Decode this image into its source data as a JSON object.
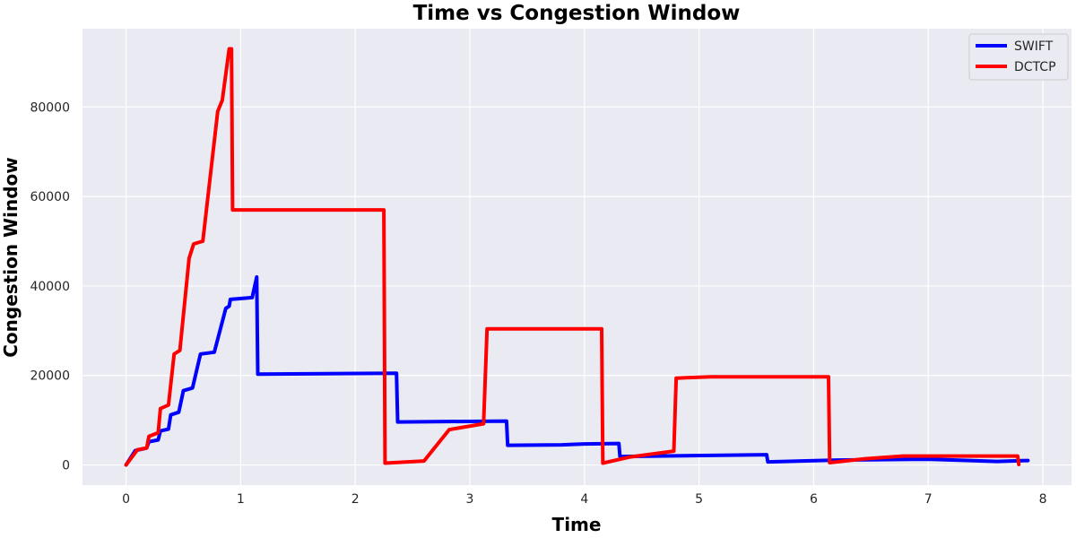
{
  "chart_data": {
    "type": "line",
    "title": "Time vs Congestion Window",
    "xlabel": "Time",
    "ylabel": "Congestion Window",
    "xlim": [
      -0.38,
      8.25
    ],
    "ylim": [
      -4500,
      97500
    ],
    "xticks": [
      0,
      1,
      2,
      3,
      4,
      5,
      6,
      7,
      8
    ],
    "yticks": [
      0,
      20000,
      40000,
      60000,
      80000
    ],
    "grid": true,
    "legend_position": "top-right",
    "series": [
      {
        "name": "SWIFT",
        "color": "#0000ff",
        "points": [
          [
            0,
            0
          ],
          [
            0.08,
            3200
          ],
          [
            0.15,
            3600
          ],
          [
            0.18,
            3800
          ],
          [
            0.2,
            5200
          ],
          [
            0.28,
            5600
          ],
          [
            0.3,
            7600
          ],
          [
            0.37,
            8000
          ],
          [
            0.39,
            11200
          ],
          [
            0.46,
            11800
          ],
          [
            0.5,
            16600
          ],
          [
            0.58,
            17200
          ],
          [
            0.65,
            24800
          ],
          [
            0.77,
            25200
          ],
          [
            0.85,
            33000
          ],
          [
            0.87,
            35000
          ],
          [
            0.9,
            35500
          ],
          [
            0.91,
            37000
          ],
          [
            1.1,
            37400
          ],
          [
            1.14,
            42000
          ],
          [
            1.15,
            20300
          ],
          [
            2.36,
            20500
          ],
          [
            2.37,
            9600
          ],
          [
            3.32,
            9800
          ],
          [
            3.33,
            4400
          ],
          [
            3.8,
            4500
          ],
          [
            4.0,
            4700
          ],
          [
            4.3,
            4800
          ],
          [
            4.31,
            1900
          ],
          [
            5.59,
            2300
          ],
          [
            5.6,
            700
          ],
          [
            6.2,
            1100
          ],
          [
            7.0,
            1300
          ],
          [
            7.6,
            800
          ],
          [
            7.87,
            1000
          ]
        ]
      },
      {
        "name": "DCTCP",
        "color": "#ff0000",
        "points": [
          [
            0,
            0
          ],
          [
            0.1,
            3400
          ],
          [
            0.18,
            3800
          ],
          [
            0.2,
            6400
          ],
          [
            0.28,
            7200
          ],
          [
            0.3,
            12600
          ],
          [
            0.37,
            13400
          ],
          [
            0.42,
            24800
          ],
          [
            0.47,
            25600
          ],
          [
            0.55,
            46200
          ],
          [
            0.59,
            49400
          ],
          [
            0.67,
            50000
          ],
          [
            0.8,
            79000
          ],
          [
            0.84,
            81500
          ],
          [
            0.9,
            93000
          ],
          [
            0.92,
            93000
          ],
          [
            0.93,
            57000
          ],
          [
            2.25,
            57000
          ],
          [
            2.26,
            400
          ],
          [
            2.6,
            900
          ],
          [
            2.82,
            7900
          ],
          [
            3.12,
            9200
          ],
          [
            3.15,
            30400
          ],
          [
            4.15,
            30400
          ],
          [
            4.16,
            400
          ],
          [
            4.4,
            1800
          ],
          [
            4.78,
            3100
          ],
          [
            4.8,
            19400
          ],
          [
            5.1,
            19700
          ],
          [
            6.13,
            19700
          ],
          [
            6.14,
            500
          ],
          [
            6.45,
            1400
          ],
          [
            6.78,
            2000
          ],
          [
            7.78,
            2000
          ],
          [
            7.79,
            100
          ]
        ]
      }
    ]
  }
}
